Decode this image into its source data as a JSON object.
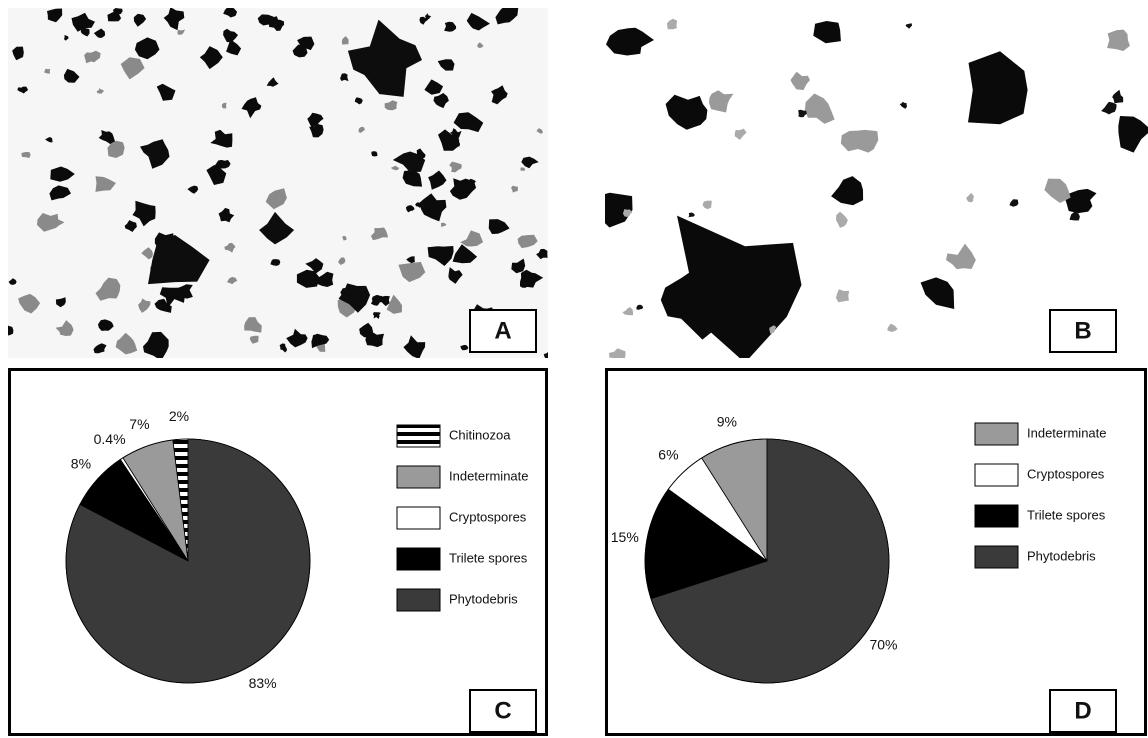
{
  "images": [
    {
      "label": "A"
    },
    {
      "label": "B"
    }
  ],
  "chart_data": [
    {
      "type": "pie",
      "label": "C",
      "categories": [
        "Chitinozoa",
        "Indeterminate",
        "Cryptospores",
        "Trilete spores",
        "Phytodebris"
      ],
      "values": [
        2,
        7,
        0.4,
        8,
        83
      ],
      "value_labels": [
        "2%",
        "7%",
        "0.4%",
        "8%",
        "83%"
      ],
      "colors": [
        "#000000",
        "#9a9a9a",
        "#ffffff",
        "#000000",
        "#3a3a3a"
      ],
      "striped": [
        true,
        false,
        false,
        false,
        false
      ]
    },
    {
      "type": "pie",
      "label": "D",
      "categories": [
        "Indeterminate",
        "Cryptospores",
        "Trilete spores",
        "Phytodebris"
      ],
      "values": [
        9,
        6,
        15,
        70
      ],
      "value_labels": [
        "9%",
        "6%",
        "15%",
        "70%"
      ],
      "colors": [
        "#9a9a9a",
        "#ffffff",
        "#000000",
        "#3a3a3a"
      ],
      "striped": [
        false,
        false,
        false,
        false
      ]
    }
  ]
}
